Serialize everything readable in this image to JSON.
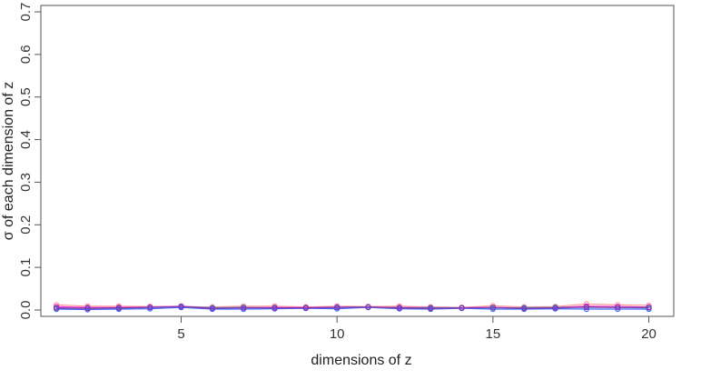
{
  "chart_data": {
    "type": "line",
    "xlabel": "dimensions of z",
    "ylabel": "σ of each dimension of z",
    "xlim": [
      0.5,
      20.8
    ],
    "ylim": [
      -0.015,
      0.715
    ],
    "x_ticks": [
      5,
      10,
      15,
      20
    ],
    "x_tick_labels": [
      "5",
      "10",
      "15",
      "20"
    ],
    "y_ticks": [
      0.0,
      0.1,
      0.2,
      0.3,
      0.4,
      0.5,
      0.6,
      0.7
    ],
    "y_tick_labels": [
      "0.0",
      "0.1",
      "0.2",
      "0.3",
      "0.4",
      "0.5",
      "0.6",
      "0.7"
    ],
    "grid": false,
    "markers": "open circles with connecting lines",
    "x": [
      1,
      2,
      3,
      4,
      5,
      6,
      7,
      8,
      9,
      10,
      11,
      12,
      13,
      14,
      15,
      16,
      17,
      18,
      19,
      20
    ],
    "series": [
      {
        "color": "#ff9999",
        "values": [
          0.012,
          0.009,
          0.009,
          0.008,
          0.008,
          0.007,
          0.009,
          0.009,
          0.007,
          0.009,
          0.008,
          0.009,
          0.007,
          0.006,
          0.01,
          0.007,
          0.008,
          0.014,
          0.012,
          0.011
        ]
      },
      {
        "color": "#ff33cc",
        "values": [
          0.008,
          0.006,
          0.006,
          0.007,
          0.009,
          0.005,
          0.006,
          0.006,
          0.006,
          0.007,
          0.007,
          0.006,
          0.006,
          0.005,
          0.006,
          0.005,
          0.006,
          0.009,
          0.008,
          0.007
        ]
      },
      {
        "color": "#33aa99",
        "values": [
          0.004,
          0.004,
          0.004,
          0.006,
          0.008,
          0.005,
          0.006,
          0.005,
          0.005,
          0.006,
          0.007,
          0.005,
          0.005,
          0.005,
          0.005,
          0.005,
          0.006,
          0.006,
          0.006,
          0.005
        ]
      },
      {
        "color": "#4466ff",
        "values": [
          0.002,
          0.001,
          0.002,
          0.003,
          0.006,
          0.002,
          0.002,
          0.003,
          0.004,
          0.003,
          0.006,
          0.003,
          0.002,
          0.004,
          0.002,
          0.002,
          0.003,
          0.002,
          0.002,
          0.002
        ]
      },
      {
        "color": "#8833aa",
        "values": [
          0.005,
          0.004,
          0.005,
          0.006,
          0.008,
          0.004,
          0.005,
          0.005,
          0.005,
          0.006,
          0.007,
          0.005,
          0.004,
          0.005,
          0.006,
          0.004,
          0.005,
          0.007,
          0.006,
          0.006
        ]
      }
    ]
  }
}
